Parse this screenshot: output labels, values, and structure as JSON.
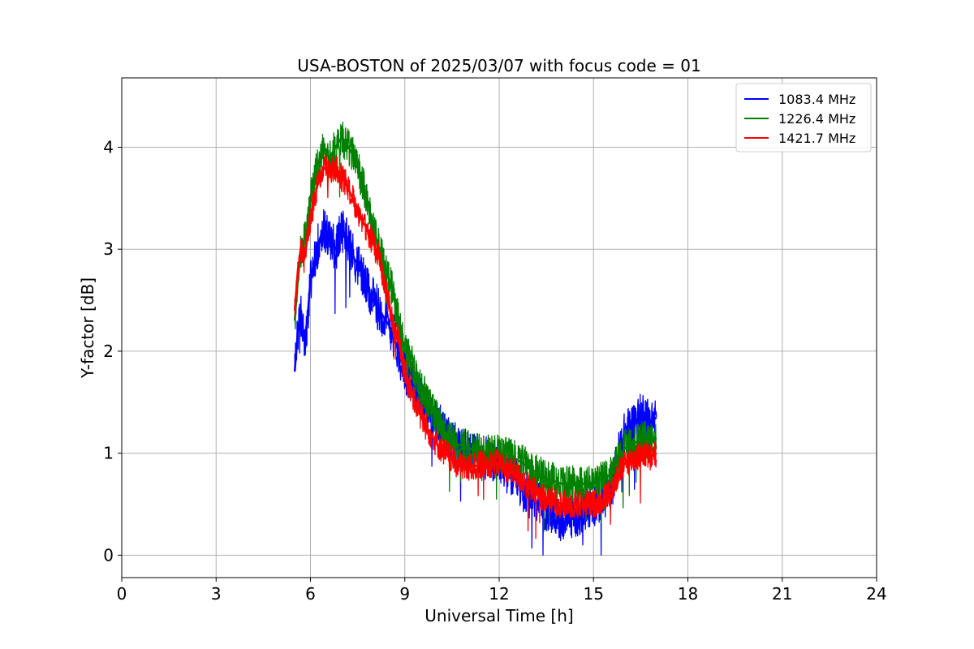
{
  "chart_data": {
    "type": "line",
    "title": "USA-BOSTON of 2025/03/07 with focus code = 01",
    "xlabel": "Universal Time [h]",
    "ylabel": "Y-factor [dB]",
    "xlim": [
      0,
      24
    ],
    "ylim": [
      -0.22,
      4.68
    ],
    "xticks": [
      0,
      3,
      6,
      9,
      12,
      15,
      18,
      21,
      24
    ],
    "yticks": [
      0,
      1,
      2,
      3,
      4
    ],
    "grid": true,
    "legend_position": "top-right",
    "series": [
      {
        "name": "1083.4 MHz",
        "color": "#0000ff",
        "x": [
          5.5,
          5.6,
          5.7,
          5.8,
          5.9,
          6.0,
          6.2,
          6.4,
          6.6,
          6.8,
          7.0,
          7.2,
          7.4,
          7.6,
          7.8,
          8.0,
          8.2,
          8.4,
          8.6,
          8.8,
          9.0,
          9.2,
          9.4,
          9.6,
          9.8,
          10.0,
          10.3,
          10.6,
          11.0,
          11.5,
          12.0,
          12.5,
          13.0,
          13.5,
          14.0,
          14.5,
          15.0,
          15.3,
          15.6,
          15.8,
          16.0,
          16.3,
          16.6,
          16.8,
          17.0
        ],
        "y": [
          1.8,
          2.2,
          2.4,
          2.1,
          2.3,
          2.7,
          3.0,
          3.2,
          3.1,
          3.0,
          3.2,
          3.1,
          2.9,
          2.8,
          2.6,
          2.5,
          2.4,
          2.3,
          2.2,
          2.0,
          1.8,
          1.7,
          1.6,
          1.5,
          1.4,
          1.3,
          1.2,
          1.1,
          1.0,
          0.95,
          0.9,
          0.75,
          0.55,
          0.45,
          0.35,
          0.4,
          0.5,
          0.55,
          0.7,
          1.0,
          1.2,
          1.3,
          1.4,
          1.3,
          1.35
        ]
      },
      {
        "name": "1226.4 MHz",
        "color": "#008000",
        "x": [
          5.5,
          5.6,
          5.7,
          5.8,
          5.9,
          6.0,
          6.2,
          6.4,
          6.6,
          6.8,
          7.0,
          7.2,
          7.4,
          7.6,
          7.8,
          8.0,
          8.2,
          8.4,
          8.6,
          8.8,
          9.0,
          9.2,
          9.4,
          9.6,
          9.8,
          10.0,
          10.3,
          10.6,
          11.0,
          11.5,
          12.0,
          12.5,
          13.0,
          13.5,
          14.0,
          14.5,
          15.0,
          15.3,
          15.6,
          15.8,
          16.0,
          16.3,
          16.6,
          16.8,
          17.0
        ],
        "y": [
          2.3,
          2.7,
          3.0,
          3.1,
          3.2,
          3.5,
          3.8,
          4.0,
          3.9,
          4.0,
          4.1,
          4.0,
          3.9,
          3.7,
          3.5,
          3.2,
          3.0,
          2.8,
          2.6,
          2.3,
          2.0,
          1.9,
          1.7,
          1.6,
          1.45,
          1.35,
          1.2,
          1.1,
          1.05,
          1.0,
          1.0,
          0.95,
          0.85,
          0.75,
          0.7,
          0.7,
          0.7,
          0.75,
          0.8,
          0.95,
          1.05,
          1.1,
          1.15,
          1.1,
          1.15
        ]
      },
      {
        "name": "1421.7 MHz",
        "color": "#ff0000",
        "x": [
          5.5,
          5.6,
          5.7,
          5.8,
          5.9,
          6.0,
          6.2,
          6.4,
          6.6,
          6.8,
          7.0,
          7.2,
          7.4,
          7.6,
          7.8,
          8.0,
          8.2,
          8.4,
          8.6,
          8.8,
          9.0,
          9.2,
          9.4,
          9.6,
          9.8,
          10.0,
          10.3,
          10.6,
          11.0,
          11.5,
          12.0,
          12.5,
          13.0,
          13.5,
          14.0,
          14.5,
          15.0,
          15.3,
          15.6,
          15.8,
          16.0,
          16.3,
          16.6,
          16.8,
          17.0
        ],
        "y": [
          2.4,
          2.8,
          3.0,
          2.9,
          3.1,
          3.3,
          3.6,
          3.8,
          3.75,
          3.8,
          3.7,
          3.6,
          3.45,
          3.3,
          3.2,
          3.05,
          2.9,
          2.6,
          2.3,
          2.1,
          1.8,
          1.6,
          1.45,
          1.3,
          1.2,
          1.1,
          1.0,
          0.9,
          0.85,
          0.9,
          0.9,
          0.8,
          0.65,
          0.55,
          0.5,
          0.5,
          0.5,
          0.55,
          0.65,
          0.8,
          0.9,
          0.95,
          1.0,
          0.95,
          1.0
        ]
      }
    ]
  }
}
